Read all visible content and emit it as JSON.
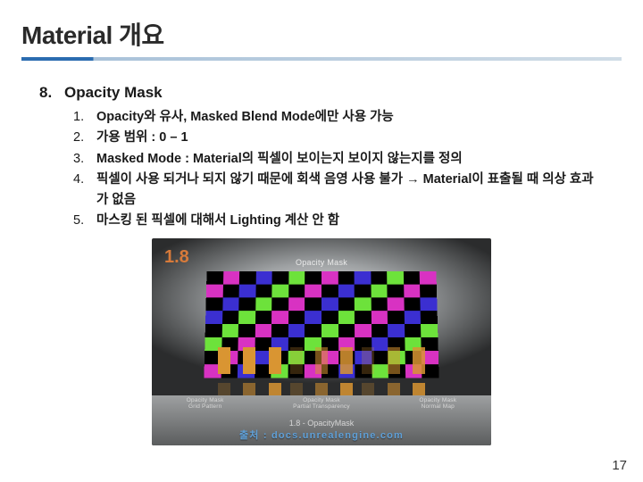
{
  "title": "Material 개요",
  "main_number": "8.",
  "main_heading": "Opacity Mask",
  "sub_items": [
    {
      "num": "1.",
      "html": "<b>Opacity와 유사, Masked Blend Mode에만 사용 가능</b>"
    },
    {
      "num": "2.",
      "html": "<b>가용 범위 : 0 – 1</b>"
    },
    {
      "num": "3.",
      "html": "<b>Masked Mode : Material의 픽셀이 보이는지 보이지 않는지를 정의</b>"
    },
    {
      "num": "4.",
      "html": "<b>픽셀이 사용 되거나 되지 않기 때문에 회색 음영 사용 불가 → Material이 표출될 때 의상 효과가 없음</b>"
    },
    {
      "num": "5.",
      "html": "<b>마스킹 된 픽셀에 대해서 Lighting 계산 안 함</b>"
    }
  ],
  "figure": {
    "label": "1.8",
    "panel_caption": "Opacity Mask",
    "bottom_caption": "1.8 - OpacityMask",
    "pedestal_labels": [
      "Opacity Mask\nGrid Pattern",
      "Opacity Mask\nPartial Transparency",
      "Opacity Mask\nNormal Map"
    ],
    "grid": {
      "colors": [
        "#000000",
        "#3b2fd1",
        "#d832c2",
        "#6de23b",
        "#000000"
      ],
      "cols": 14,
      "rows": 8
    },
    "strip_a_colors": [
      "#d99532",
      "#d99532",
      "#d99532"
    ],
    "strip_b_colors": [
      "#d99532",
      "#d99532",
      "#d99532"
    ],
    "checker_alpha": 0.0
  },
  "source_text": "출처 : docs.unrealengine.com",
  "page_number": "17"
}
